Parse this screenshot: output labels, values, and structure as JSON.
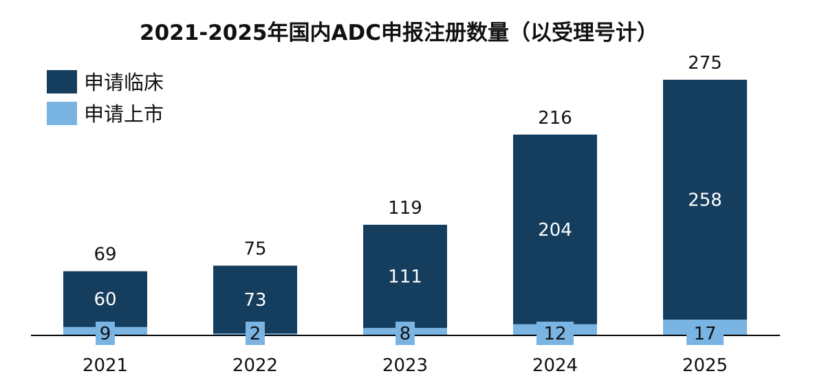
{
  "chart_data": {
    "type": "bar",
    "stacked": true,
    "title": "2021-2025年国内ADC申报注册数量（以受理号计）",
    "categories": [
      "2021",
      "2022",
      "2023",
      "2024",
      "2025"
    ],
    "series": [
      {
        "name": "申请临床",
        "values": [
          60,
          73,
          111,
          204,
          258
        ]
      },
      {
        "name": "申请上市",
        "values": [
          9,
          2,
          8,
          12,
          17
        ]
      }
    ],
    "totals": [
      69,
      75,
      119,
      216,
      275
    ],
    "legend_position": "top-left",
    "grid": false,
    "ylim": [
      0,
      275
    ]
  },
  "colors": {
    "clinical": "#143d5e",
    "market": "#79b4e3",
    "market_label_bg": "#79b4e3"
  }
}
